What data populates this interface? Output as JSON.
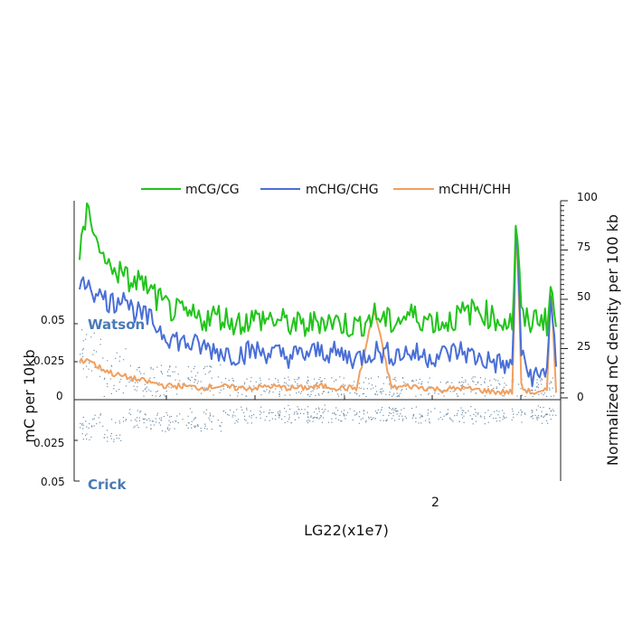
{
  "chart_data": {
    "type": "line",
    "xlabel": "LG22(x1e7)",
    "x_tick_labels": [
      "2"
    ],
    "xlim": [
      0,
      2.75
    ],
    "left_axis": {
      "label": "mC per 10kb",
      "top_ticks": [
        "0",
        "0.025",
        "0.05"
      ],
      "bottom_ticks": [
        "0.025",
        "0.05"
      ],
      "ylim_top": [
        0,
        0.05
      ],
      "ylim_bottom": [
        0,
        0.05
      ]
    },
    "right_axis": {
      "label": "Normalized mC density per 100 kb",
      "ticks": [
        "0",
        "25",
        "50",
        "75",
        "100"
      ],
      "ylim": [
        0,
        100
      ]
    },
    "strand_labels": {
      "watson": "Watson",
      "crick": "Crick"
    },
    "legend": [
      {
        "name": "mCG/CG",
        "color": "#22c41c"
      },
      {
        "name": "mCHG/CHG",
        "color": "#4a6fd6"
      },
      {
        "name": "mCHH/CHH",
        "color": "#f0a060"
      }
    ],
    "series": [
      {
        "name": "mCG/CG",
        "color": "#22c41c",
        "x": [
          0.0,
          0.05,
          0.1,
          0.15,
          0.2,
          0.25,
          0.3,
          0.35,
          0.4,
          0.45,
          0.5,
          0.6,
          0.7,
          0.8,
          0.9,
          1.0,
          1.1,
          1.2,
          1.3,
          1.4,
          1.5,
          1.6,
          1.7,
          1.8,
          1.9,
          2.0,
          2.1,
          2.2,
          2.3,
          2.4,
          2.5,
          2.52,
          2.55,
          2.6,
          2.65,
          2.7,
          2.72,
          2.75
        ],
        "values": [
          70,
          98,
          80,
          68,
          66,
          62,
          58,
          60,
          55,
          50,
          46,
          42,
          40,
          42,
          38,
          40,
          40,
          38,
          36,
          40,
          38,
          36,
          42,
          38,
          42,
          40,
          38,
          42,
          45,
          40,
          38,
          95,
          40,
          38,
          42,
          38,
          58,
          35
        ]
      },
      {
        "name": "mCHG/CHG",
        "color": "#4a6fd6",
        "x": [
          0.0,
          0.05,
          0.1,
          0.15,
          0.2,
          0.25,
          0.3,
          0.35,
          0.4,
          0.45,
          0.5,
          0.6,
          0.7,
          0.8,
          0.9,
          1.0,
          1.1,
          1.2,
          1.3,
          1.4,
          1.5,
          1.6,
          1.7,
          1.8,
          1.9,
          2.0,
          2.1,
          2.2,
          2.3,
          2.4,
          2.5,
          2.52,
          2.55,
          2.6,
          2.65,
          2.7,
          2.72,
          2.75
        ],
        "values": [
          55,
          60,
          52,
          50,
          48,
          54,
          45,
          42,
          40,
          36,
          32,
          28,
          26,
          24,
          22,
          24,
          23,
          21,
          22,
          24,
          22,
          20,
          24,
          22,
          23,
          21,
          22,
          24,
          20,
          18,
          15,
          98,
          20,
          12,
          10,
          16,
          55,
          15
        ]
      },
      {
        "name": "mCHH/CHH",
        "color": "#f0a060",
        "x": [
          0.0,
          0.05,
          0.1,
          0.15,
          0.2,
          0.25,
          0.3,
          0.35,
          0.4,
          0.45,
          0.5,
          0.6,
          0.7,
          0.8,
          0.9,
          1.0,
          1.1,
          1.2,
          1.3,
          1.4,
          1.5,
          1.6,
          1.7,
          1.8,
          1.9,
          2.0,
          2.1,
          2.2,
          2.3,
          2.4,
          2.5,
          2.52,
          2.55,
          2.6,
          2.65,
          2.7,
          2.72,
          2.75
        ],
        "values": [
          18,
          20,
          16,
          14,
          12,
          11,
          10,
          9,
          8,
          7,
          6,
          6,
          5,
          6,
          5,
          5,
          6,
          5,
          5,
          6,
          5,
          5,
          45,
          5,
          6,
          5,
          4,
          5,
          4,
          3,
          3,
          95,
          5,
          3,
          2,
          4,
          60,
          3
        ]
      }
    ]
  }
}
